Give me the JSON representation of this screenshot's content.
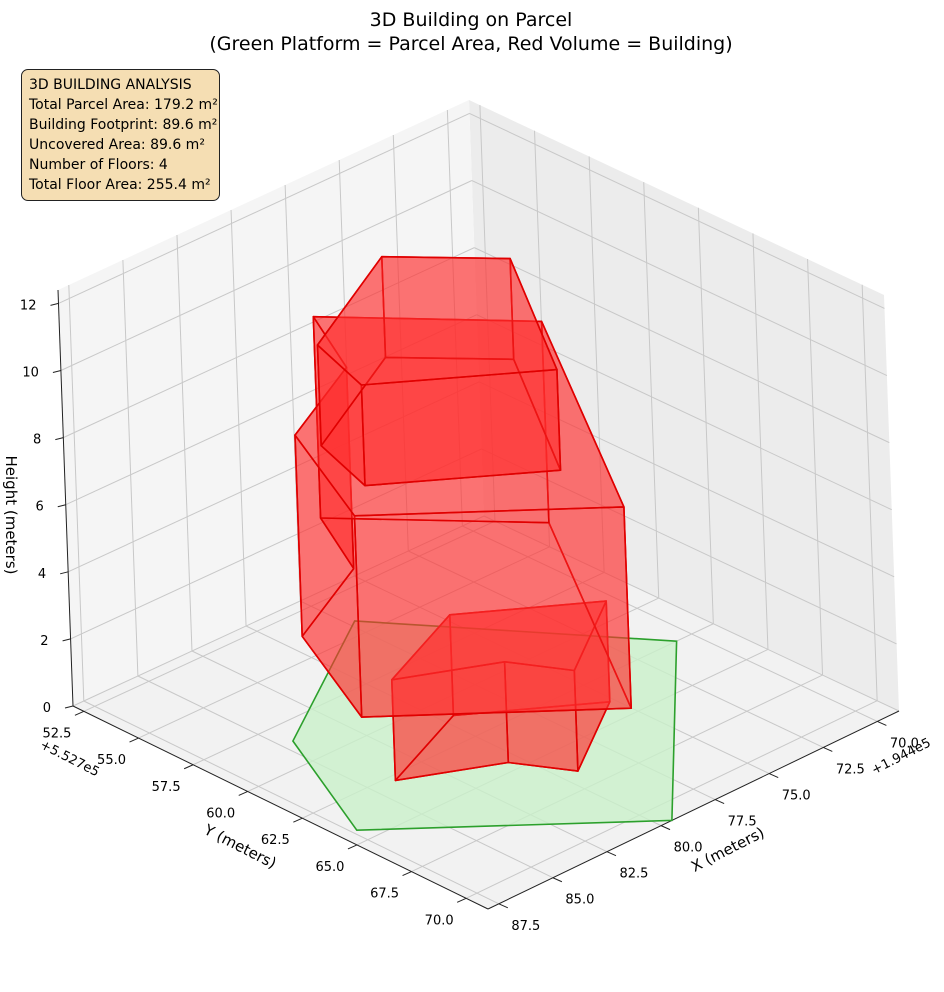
{
  "chart_data": {
    "type": "3d-polygon",
    "title": "3D Building on Parcel",
    "subtitle": "(Green Platform = Parcel Area, Red Volume = Building)",
    "xlabel": "X (meters)",
    "ylabel": "Y (meters)",
    "zlabel": "Height (meters)",
    "x_offset": "+1.944e5",
    "y_offset": "+5.527e5",
    "x_ticks": [
      "70.0",
      "72.5",
      "75.0",
      "77.5",
      "80.0",
      "82.5",
      "85.0",
      "87.5"
    ],
    "y_ticks": [
      "52.5",
      "55.0",
      "57.5",
      "60.0",
      "62.5",
      "65.0",
      "67.5",
      "70.0"
    ],
    "z_ticks": [
      "0",
      "2",
      "4",
      "6",
      "8",
      "10",
      "12"
    ],
    "xlim": [
      69.0,
      88.0
    ],
    "ylim": [
      52.0,
      71.0
    ],
    "zlim": [
      0,
      12.4
    ],
    "grid": true,
    "colors": {
      "parcel_fill": "#c9f0c9",
      "parcel_edge": "#2ca02c",
      "building_fill": "#ff3030",
      "building_edge": "#e00000"
    },
    "parcel": [
      [
        70.7,
        62.5
      ],
      [
        77.2,
        54.2
      ],
      [
        84.5,
        58.6
      ],
      [
        87.3,
        64.3
      ],
      [
        79.5,
        71.0
      ]
    ],
    "building_volumes": [
      {
        "name": "base",
        "z": [
          0,
          3
        ],
        "footprint": [
          [
            79.5,
            61.0
          ],
          [
            75.2,
            63.9
          ],
          [
            79.3,
            66.5
          ],
          [
            80.5,
            64.5
          ],
          [
            84.0,
            62.8
          ]
        ]
      },
      {
        "name": "middle",
        "z": [
          3,
          9
        ],
        "footprint": [
          [
            72.7,
            58.8
          ],
          [
            79.8,
            69.6
          ],
          [
            86.5,
            63.9
          ],
          [
            84.0,
            58.7
          ],
          [
            79.5,
            56.6
          ],
          [
            77.8,
            53.4
          ]
        ]
      },
      {
        "name": "top",
        "z": [
          9,
          12
        ],
        "footprint": [
          [
            75.2,
            60.0
          ],
          [
            79.5,
            66.4
          ],
          [
            84.8,
            62.7
          ],
          [
            83.9,
            59.8
          ],
          [
            78.1,
            57.0
          ]
        ]
      }
    ],
    "info_box": {
      "lines": [
        "3D BUILDING ANALYSIS",
        "Total Parcel Area: 179.2 m²",
        "Building Footprint: 89.6 m²",
        "Uncovered Area: 89.6 m²",
        "Number of Floors: 4",
        "Total Floor Area: 255.4 m²"
      ]
    }
  }
}
